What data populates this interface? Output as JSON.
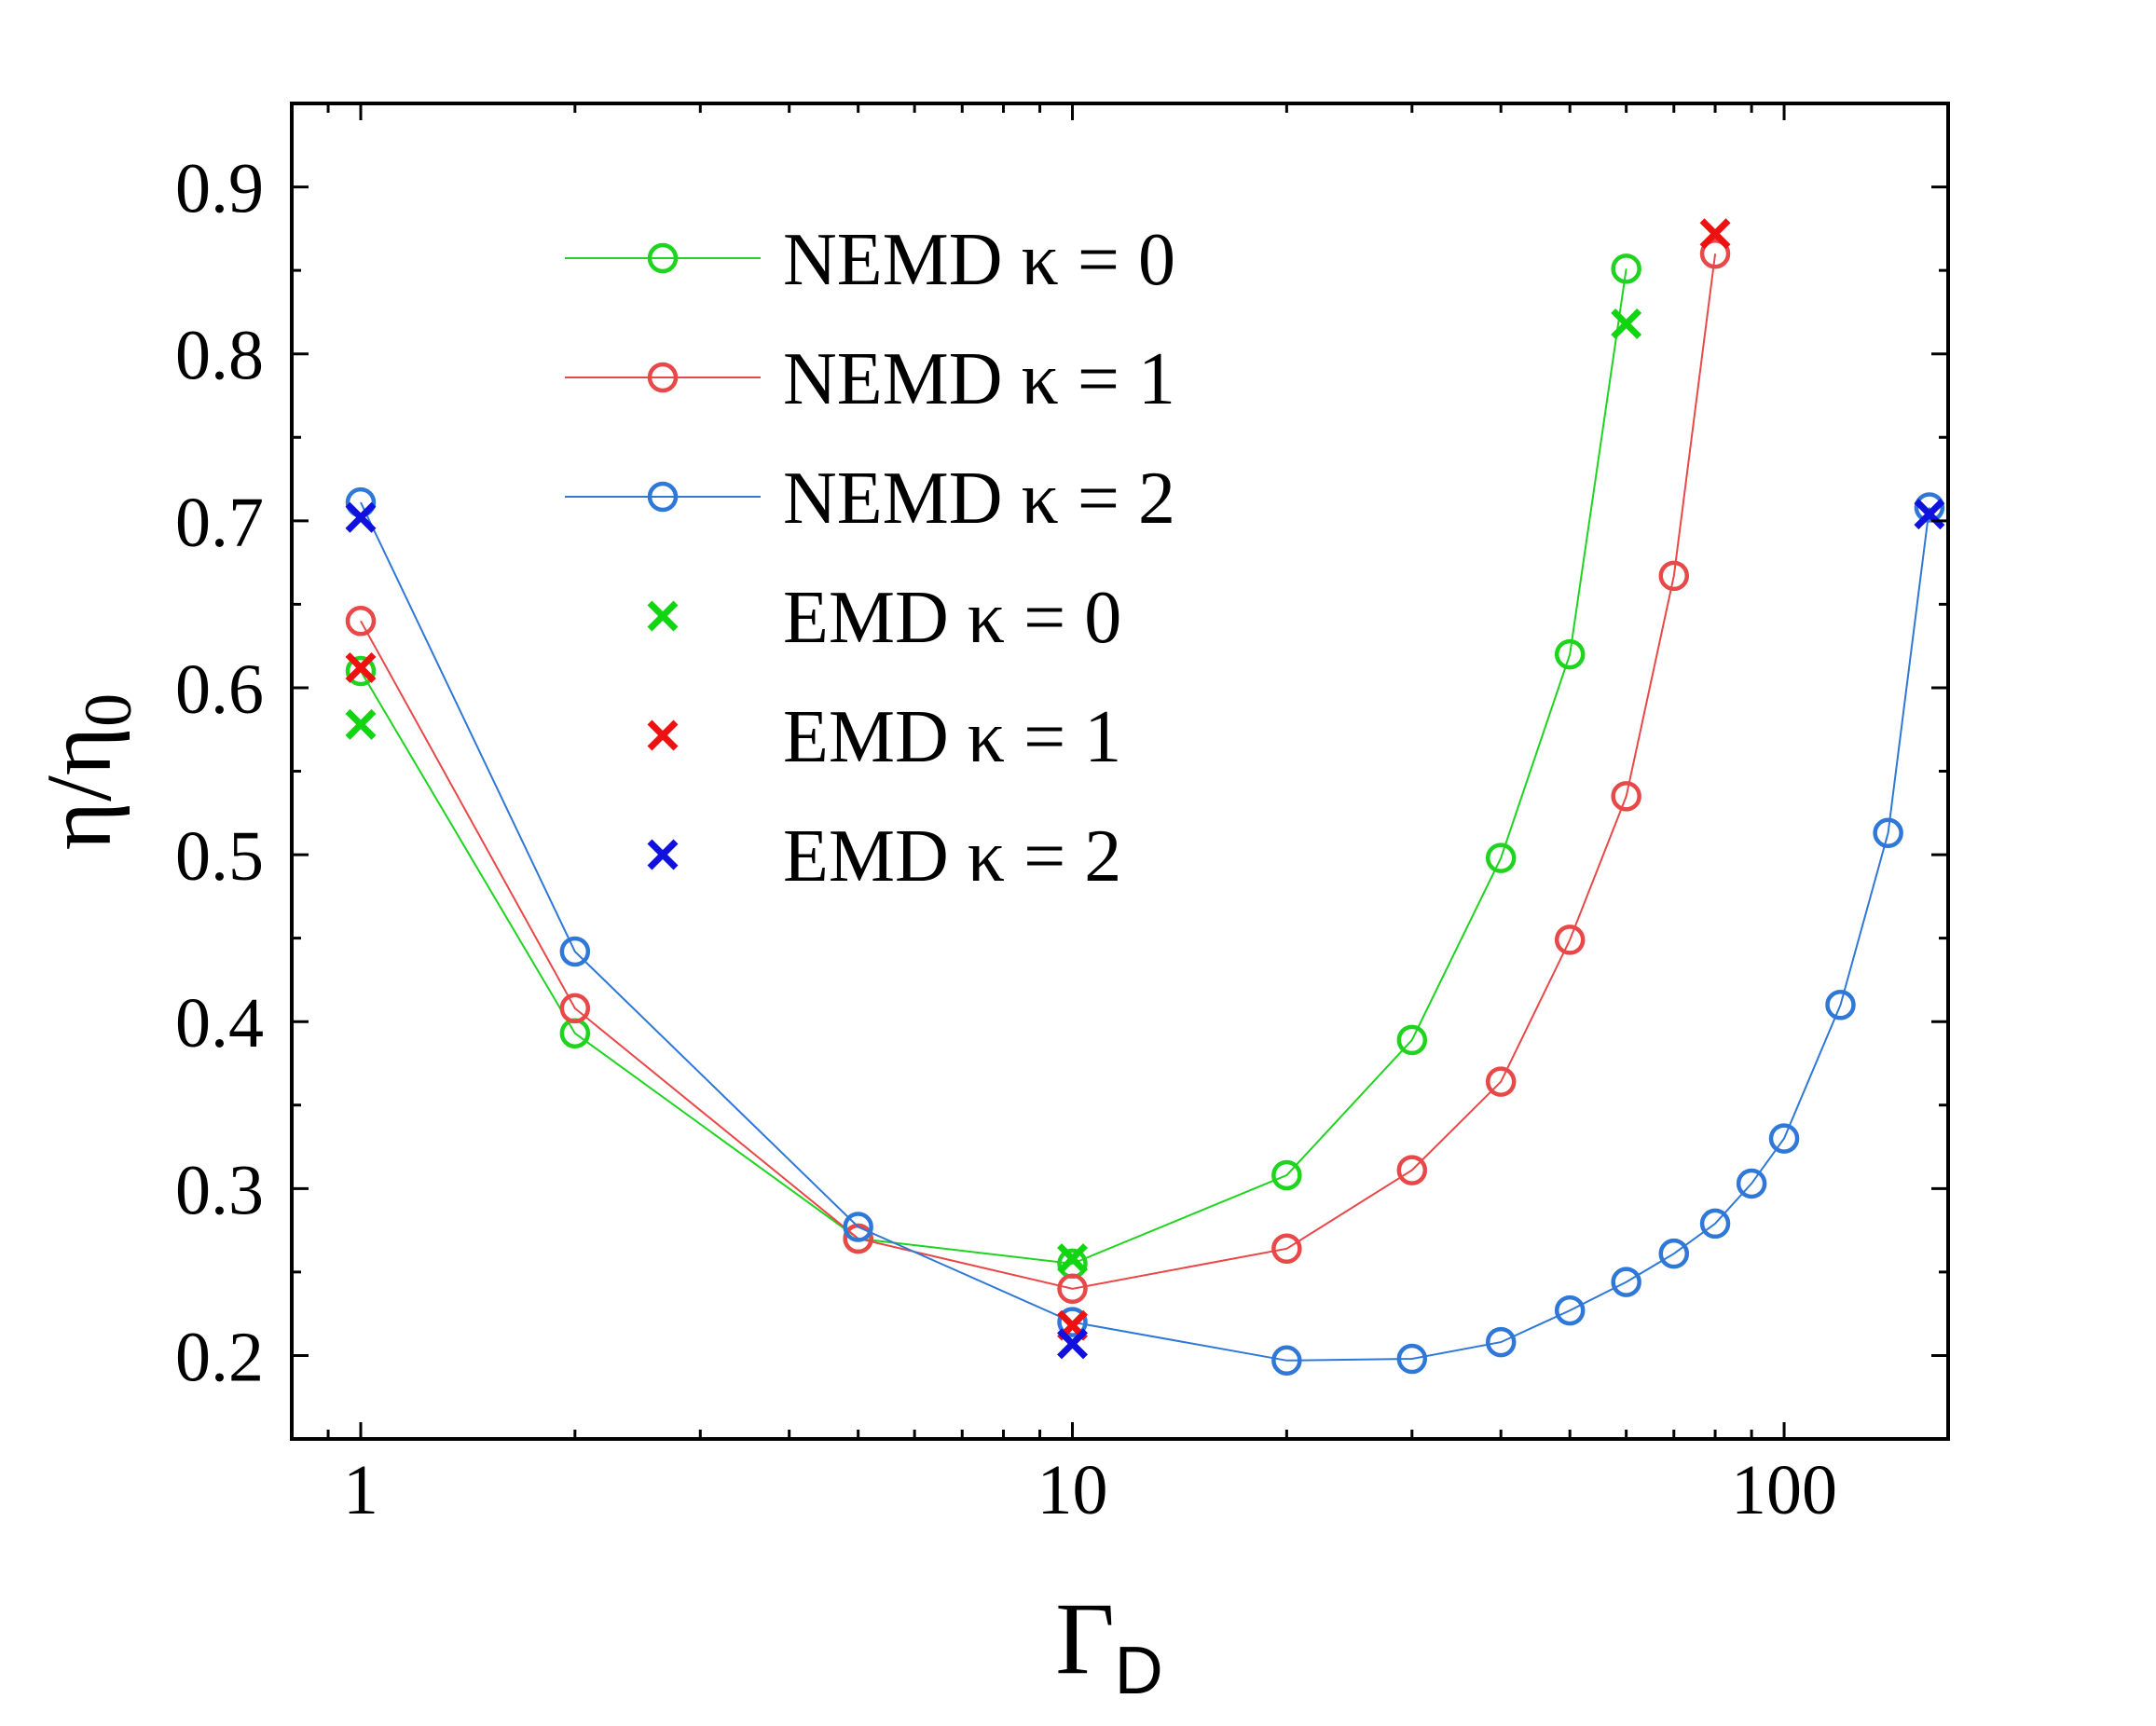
{
  "chart_data": {
    "type": "line",
    "xscale": "log",
    "xlabel": {
      "main": "Γ",
      "sub": "D"
    },
    "ylabel": {
      "main": "η/η",
      "sub": "0"
    },
    "xlim": [
      0.8,
      170
    ],
    "ylim": [
      0.15,
      0.95
    ],
    "xticks": [
      {
        "value": 1,
        "label": "1"
      },
      {
        "value": 10,
        "label": "10"
      },
      {
        "value": 100,
        "label": "100"
      }
    ],
    "yticks": [
      {
        "value": 0.2,
        "label": "0.2"
      },
      {
        "value": 0.3,
        "label": "0.3"
      },
      {
        "value": 0.4,
        "label": "0.4"
      },
      {
        "value": 0.5,
        "label": "0.5"
      },
      {
        "value": 0.6,
        "label": "0.6"
      },
      {
        "value": 0.7,
        "label": "0.7"
      },
      {
        "value": 0.8,
        "label": "0.8"
      },
      {
        "value": 0.9,
        "label": "0.9"
      }
    ],
    "legend_position": "top-center",
    "series": [
      {
        "name": "NEMD κ = 0",
        "color": "#1ed41e",
        "marker": "circle",
        "line": true,
        "x": [
          1,
          2,
          5,
          10,
          20,
          30,
          40,
          50,
          60
        ],
        "y": [
          0.61,
          0.393,
          0.27,
          0.255,
          0.308,
          0.389,
          0.498,
          0.62,
          0.851
        ]
      },
      {
        "name": "NEMD κ = 1",
        "color": "#e84848",
        "marker": "circle",
        "line": true,
        "x": [
          1,
          2,
          5,
          10,
          20,
          30,
          40,
          50,
          60,
          70,
          80
        ],
        "y": [
          0.64,
          0.408,
          0.27,
          0.24,
          0.264,
          0.311,
          0.364,
          0.449,
          0.535,
          0.667,
          0.86
        ]
      },
      {
        "name": "NEMD κ = 2",
        "color": "#2f78d8",
        "marker": "circle",
        "line": true,
        "x": [
          1,
          2,
          5,
          10,
          20,
          30,
          40,
          50,
          60,
          70,
          80,
          90,
          100,
          120,
          140,
          160
        ],
        "y": [
          0.711,
          0.442,
          0.277,
          0.22,
          0.197,
          0.198,
          0.208,
          0.227,
          0.244,
          0.261,
          0.279,
          0.303,
          0.33,
          0.41,
          0.513,
          0.708
        ]
      },
      {
        "name": "EMD κ = 0",
        "color": "#11d511",
        "marker": "cross",
        "line": false,
        "x": [
          1,
          10,
          60
        ],
        "y": [
          0.578,
          0.258,
          0.818
        ]
      },
      {
        "name": "EMD κ = 1",
        "color": "#ee1111",
        "marker": "cross",
        "line": false,
        "x": [
          1,
          10,
          80
        ],
        "y": [
          0.612,
          0.218,
          0.872
        ]
      },
      {
        "name": "EMD κ = 2",
        "color": "#1111dd",
        "marker": "cross",
        "line": false,
        "x": [
          1,
          10,
          160
        ],
        "y": [
          0.702,
          0.207,
          0.704
        ]
      }
    ]
  }
}
